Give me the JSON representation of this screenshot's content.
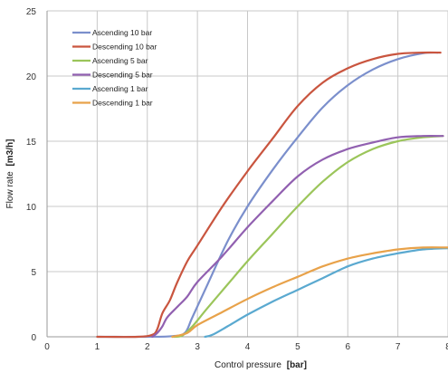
{
  "chart_data": {
    "type": "line",
    "title": "",
    "xlabel": "Control pressure",
    "xlabel_unit": "[bar]",
    "ylabel": "Flow rate",
    "ylabel_unit": "[m3/h]",
    "xlim": [
      0,
      8
    ],
    "ylim": [
      0,
      25
    ],
    "xticks": [
      0,
      1,
      2,
      3,
      4,
      5,
      6,
      7,
      8
    ],
    "yticks": [
      0,
      5,
      10,
      15,
      20,
      25
    ],
    "grid": true,
    "legend_position": "top-left",
    "series": [
      {
        "name": "Ascending 10 bar",
        "color": "#7b8fcc",
        "points": [
          [
            1.0,
            0
          ],
          [
            2.0,
            0
          ],
          [
            2.5,
            0.05
          ],
          [
            2.75,
            0.3
          ],
          [
            2.9,
            1.5
          ],
          [
            3.2,
            4.0
          ],
          [
            3.6,
            7.3
          ],
          [
            4.0,
            10.0
          ],
          [
            4.5,
            12.8
          ],
          [
            5.0,
            15.3
          ],
          [
            5.5,
            17.6
          ],
          [
            6.0,
            19.3
          ],
          [
            6.5,
            20.5
          ],
          [
            7.0,
            21.3
          ],
          [
            7.5,
            21.75
          ],
          [
            7.8,
            21.8
          ]
        ]
      },
      {
        "name": "Descending 10 bar",
        "color": "#c9553f",
        "points": [
          [
            1.0,
            0
          ],
          [
            1.8,
            0
          ],
          [
            2.1,
            0.15
          ],
          [
            2.2,
            0.6
          ],
          [
            2.3,
            1.8
          ],
          [
            2.45,
            2.8
          ],
          [
            2.6,
            4.2
          ],
          [
            2.8,
            5.8
          ],
          [
            3.0,
            7.0
          ],
          [
            3.5,
            10.0
          ],
          [
            4.0,
            12.7
          ],
          [
            4.5,
            15.2
          ],
          [
            5.0,
            17.7
          ],
          [
            5.5,
            19.5
          ],
          [
            6.0,
            20.6
          ],
          [
            6.5,
            21.3
          ],
          [
            7.0,
            21.7
          ],
          [
            7.5,
            21.8
          ],
          [
            7.85,
            21.8
          ]
        ]
      },
      {
        "name": "Ascending 5 bar",
        "color": "#9bc55a",
        "points": [
          [
            2.5,
            0
          ],
          [
            2.7,
            0.1
          ],
          [
            2.9,
            0.8
          ],
          [
            3.2,
            2.2
          ],
          [
            3.6,
            4.0
          ],
          [
            4.0,
            5.8
          ],
          [
            4.5,
            7.9
          ],
          [
            5.0,
            10.0
          ],
          [
            5.5,
            11.9
          ],
          [
            6.0,
            13.4
          ],
          [
            6.5,
            14.4
          ],
          [
            7.0,
            15.0
          ],
          [
            7.5,
            15.3
          ],
          [
            7.9,
            15.4
          ]
        ]
      },
      {
        "name": "Descending 5 bar",
        "color": "#9160b0",
        "points": [
          [
            2.1,
            0
          ],
          [
            2.2,
            0.3
          ],
          [
            2.3,
            0.8
          ],
          [
            2.4,
            1.5
          ],
          [
            2.6,
            2.3
          ],
          [
            2.8,
            3.1
          ],
          [
            3.0,
            4.2
          ],
          [
            3.5,
            6.2
          ],
          [
            4.0,
            8.4
          ],
          [
            4.5,
            10.4
          ],
          [
            5.0,
            12.3
          ],
          [
            5.5,
            13.6
          ],
          [
            6.0,
            14.4
          ],
          [
            6.5,
            14.9
          ],
          [
            7.0,
            15.3
          ],
          [
            7.5,
            15.4
          ],
          [
            7.9,
            15.4
          ]
        ]
      },
      {
        "name": "Ascending 1 bar",
        "color": "#5aa9d0",
        "points": [
          [
            3.15,
            0
          ],
          [
            3.3,
            0.15
          ],
          [
            3.6,
            0.8
          ],
          [
            4.0,
            1.7
          ],
          [
            4.5,
            2.7
          ],
          [
            5.0,
            3.6
          ],
          [
            5.5,
            4.5
          ],
          [
            6.0,
            5.4
          ],
          [
            6.5,
            6.0
          ],
          [
            7.0,
            6.4
          ],
          [
            7.5,
            6.7
          ],
          [
            8.0,
            6.8
          ]
        ]
      },
      {
        "name": "Descending 1 bar",
        "color": "#e8a24a",
        "points": [
          [
            2.5,
            0
          ],
          [
            2.8,
            0.3
          ],
          [
            3.0,
            0.9
          ],
          [
            3.5,
            1.9
          ],
          [
            4.0,
            2.9
          ],
          [
            4.5,
            3.8
          ],
          [
            5.0,
            4.6
          ],
          [
            5.5,
            5.4
          ],
          [
            6.0,
            6.0
          ],
          [
            6.5,
            6.4
          ],
          [
            7.0,
            6.7
          ],
          [
            7.5,
            6.85
          ],
          [
            8.0,
            6.85
          ],
          [
            8.4,
            6.85
          ]
        ]
      }
    ]
  }
}
